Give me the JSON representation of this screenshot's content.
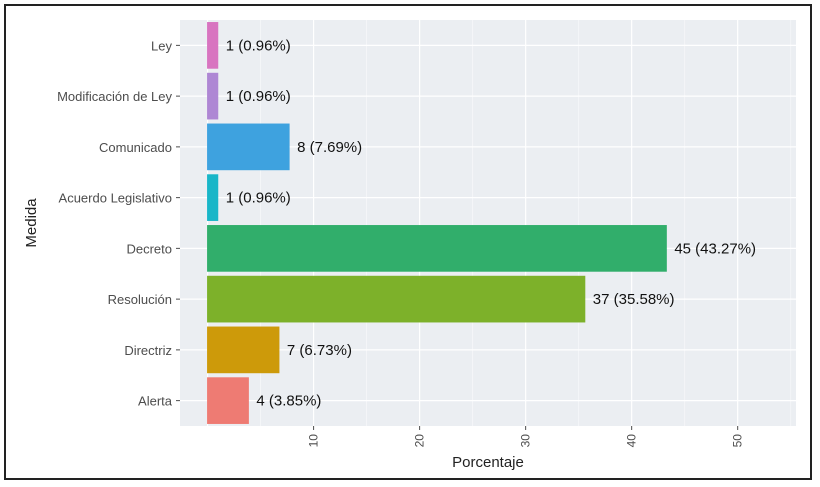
{
  "chart_data": {
    "type": "bar",
    "orientation": "horizontal",
    "xlabel": "Porcentaje",
    "ylabel": "Medida",
    "xlim": [
      -2.6,
      55.5
    ],
    "x_ticks": [
      10,
      20,
      30,
      40,
      50
    ],
    "grid": true,
    "categories": [
      "Ley",
      "Modificación de Ley",
      "Comunicado",
      "Acuerdo Legislativo",
      "Decreto",
      "Resolución",
      "Directriz",
      "Alerta"
    ],
    "values": [
      0.96,
      0.96,
      7.69,
      0.96,
      43.27,
      35.58,
      6.73,
      3.85
    ],
    "counts": [
      1,
      1,
      8,
      1,
      45,
      37,
      7,
      4
    ],
    "labels": [
      "1 (0.96%)",
      "1 (0.96%)",
      "8 (7.69%)",
      "1 (0.96%)",
      "45 (43.27%)",
      "37 (35.58%)",
      "7 (6.73%)",
      "4 (3.85%)"
    ],
    "colors": [
      "#D874C0",
      "#AE87D4",
      "#3EA2DF",
      "#19B6C8",
      "#31AE6B",
      "#7DB12A",
      "#CD9A0A",
      "#EE7B73"
    ]
  }
}
